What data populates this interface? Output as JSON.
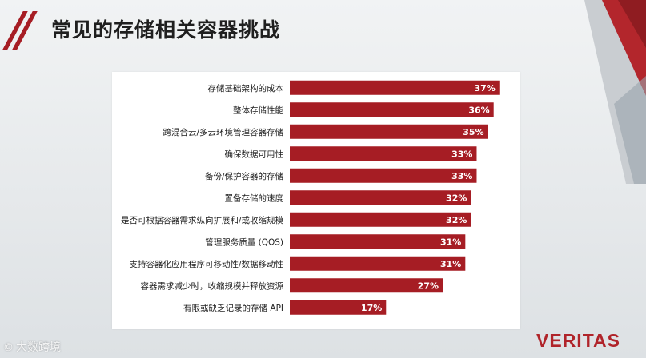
{
  "slide": {
    "title": "常见的存储相关容器挑战",
    "logo_text": "VERITAS",
    "watermark_text": "大数跨境",
    "accent_color": "#a61d24"
  },
  "chart_data": {
    "type": "bar",
    "orientation": "horizontal",
    "title": "",
    "xlabel": "",
    "ylabel": "",
    "xlim": [
      0,
      40
    ],
    "grid": false,
    "categories": [
      "存储基础架构的成本",
      "整体存储性能",
      "跨混合云/多云环境管理容器存储",
      "确保数据可用性",
      "备份/保护容器的存储",
      "置备存储的速度",
      "是否可根据容器需求纵向扩展和/或收缩规模",
      "管理服务质量 (QOS)",
      "支持容器化应用程序可移动性/数据移动性",
      "容器需求减少时，收缩规模并释放资源",
      "有限或缺乏记录的存储 API"
    ],
    "values": [
      37,
      36,
      35,
      33,
      33,
      32,
      32,
      31,
      31,
      27,
      17
    ],
    "value_labels": [
      "37%",
      "36%",
      "35%",
      "33%",
      "33%",
      "32%",
      "32%",
      "31%",
      "31%",
      "27%",
      "17%"
    ],
    "bar_color": "#a61d24"
  }
}
